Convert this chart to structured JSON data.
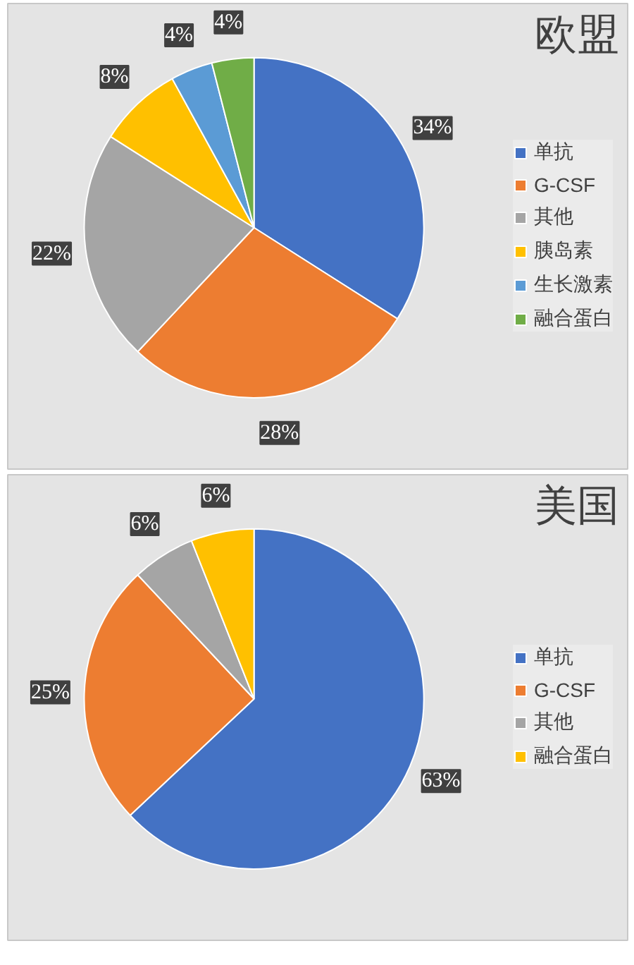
{
  "chart_data": [
    {
      "type": "pie",
      "title": "欧盟",
      "categories": [
        "单抗",
        "G-CSF",
        "其他",
        "胰岛素",
        "生长激素",
        "融合蛋白"
      ],
      "values": [
        34,
        28,
        22,
        8,
        4,
        4
      ],
      "colors": [
        "#4472c4",
        "#ed7d31",
        "#a5a5a5",
        "#ffc000",
        "#5b9bd5",
        "#70ad47"
      ],
      "value_labels": [
        "34%",
        "28%",
        "22%",
        "8%",
        "4%",
        "4%"
      ],
      "legend": "right"
    },
    {
      "type": "pie",
      "title": "美国",
      "categories": [
        "单抗",
        "G-CSF",
        "其他",
        "融合蛋白"
      ],
      "values": [
        63,
        25,
        6,
        6
      ],
      "colors": [
        "#4472c4",
        "#ed7d31",
        "#a5a5a5",
        "#ffc000"
      ],
      "value_labels": [
        "63%",
        "25%",
        "6%",
        "6%"
      ],
      "legend": "right"
    }
  ]
}
